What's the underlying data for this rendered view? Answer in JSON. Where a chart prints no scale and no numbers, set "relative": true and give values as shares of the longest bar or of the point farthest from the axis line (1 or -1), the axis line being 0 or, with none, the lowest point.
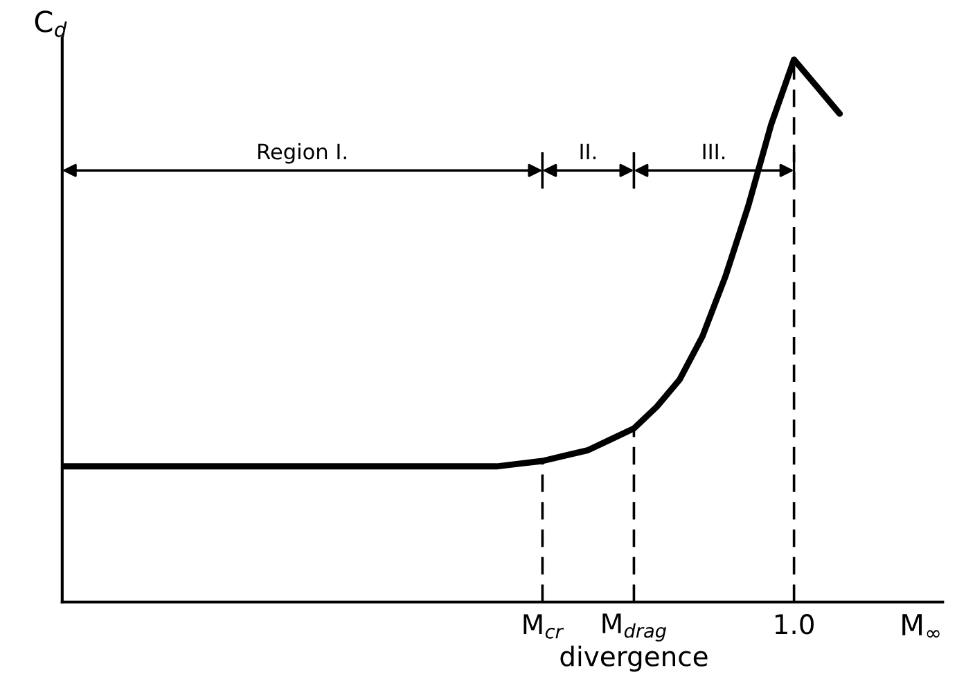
{
  "chart_data": {
    "type": "line",
    "relative": true,
    "xlabel": "M$_{∞}$",
    "ylabel": "C$_{d}$",
    "color": "#000000",
    "categories": [
      null,
      null,
      null,
      null,
      null,
      null,
      null,
      null,
      null,
      null,
      null,
      null,
      null,
      null,
      null,
      null,
      null,
      null,
      null,
      null,
      null,
      "M$_{cr}$",
      null,
      null,
      null,
      "M$_{drag}$\ndivergence",
      null,
      null,
      null,
      null,
      null,
      null,
      "1.0",
      null,
      null
    ],
    "values": [
      0.25,
      0.25,
      0.25,
      0.25,
      0.25,
      0.25,
      0.25,
      0.25,
      0.25,
      0.25,
      0.25,
      0.25,
      0.25,
      0.25,
      0.25,
      0.25,
      0.25,
      0.25,
      0.25,
      0.25,
      0.255,
      0.26,
      0.27,
      0.28,
      0.3,
      0.32,
      0.36,
      0.41,
      0.49,
      0.6,
      0.73,
      0.88,
      1.0,
      0.95,
      0.9
    ],
    "tick_labels": "x",
    "grid": false,
    "legend": false,
    "marker": "none",
    "line_style": "solid",
    "ref_lines": [
      {
        "axis": "x",
        "value": "M$_{cr}$",
        "line_style": "dashed"
      },
      {
        "axis": "x",
        "value": "M$_{drag}$\ndivergence",
        "line_style": "dashed"
      },
      {
        "axis": "x",
        "value": "1.0",
        "line_style": "dashed"
      }
    ],
    "annotations": [
      "Region I.",
      "II.",
      "III."
    ]
  }
}
